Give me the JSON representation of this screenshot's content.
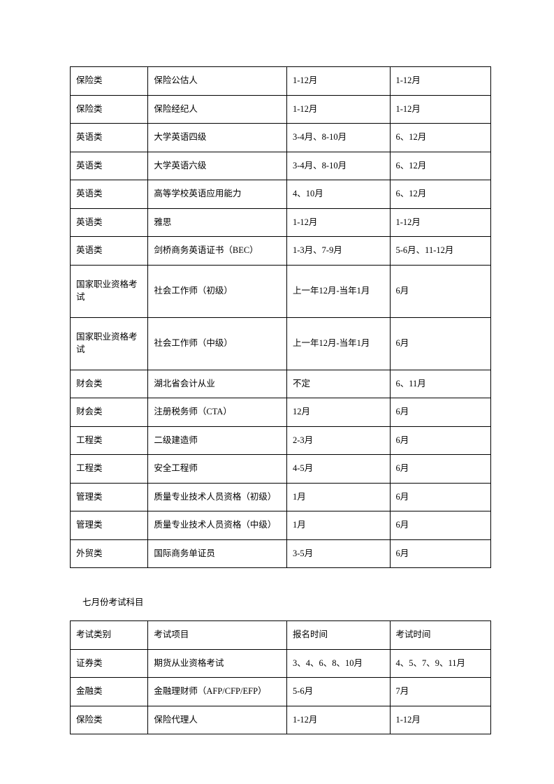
{
  "table1": {
    "rows": [
      [
        "保险类",
        "保险公估人",
        "1-12月",
        "1-12月"
      ],
      [
        "保险类",
        "保险经纪人",
        "1-12月",
        "1-12月"
      ],
      [
        "英语类",
        "大学英语四级",
        "3-4月、8-10月",
        "6、12月"
      ],
      [
        "英语类",
        "大学英语六级",
        "3-4月、8-10月",
        "6、12月"
      ],
      [
        "英语类",
        "高等学校英语应用能力",
        "4、10月",
        "6、12月"
      ],
      [
        "英语类",
        "雅思",
        "1-12月",
        "1-12月"
      ],
      [
        "英语类",
        "剑桥商务英语证书（BEC）",
        "1-3月、7-9月",
        "5-6月、11-12月"
      ],
      [
        "国家职业资格考试",
        "社会工作师（初级）",
        "上一年12月-当年1月",
        "6月"
      ],
      [
        "国家职业资格考试",
        "社会工作师（中级）",
        "上一年12月-当年1月",
        "6月"
      ],
      [
        "财会类",
        "湖北省会计从业",
        "不定",
        "6、11月"
      ],
      [
        "财会类",
        "注册税务师（CTA）",
        "12月",
        "6月"
      ],
      [
        "工程类",
        "二级建造师",
        "2-3月",
        "6月"
      ],
      [
        "工程类",
        "安全工程师",
        "4-5月",
        "6月"
      ],
      [
        "管理类",
        "质量专业技术人员资格（初级）",
        "1月",
        "6月"
      ],
      [
        "管理类",
        "质量专业技术人员资格（中级）",
        "1月",
        "6月"
      ],
      [
        "外贸类",
        "国际商务单证员",
        "3-5月",
        "6月"
      ]
    ]
  },
  "section_title": "七月份考试科目",
  "table2": {
    "header": [
      "考试类别",
      "考试项目",
      "报名时间",
      "考试时间"
    ],
    "rows": [
      [
        "证券类",
        "期货从业资格考试",
        "3、4、6、8、10月",
        "4、5、7、9、11月"
      ],
      [
        "金融类",
        "金融理财师（AFP/CFP/EFP）",
        "5-6月",
        "7月"
      ],
      [
        "保险类",
        "保险代理人",
        "1-12月",
        "1-12月"
      ]
    ]
  }
}
